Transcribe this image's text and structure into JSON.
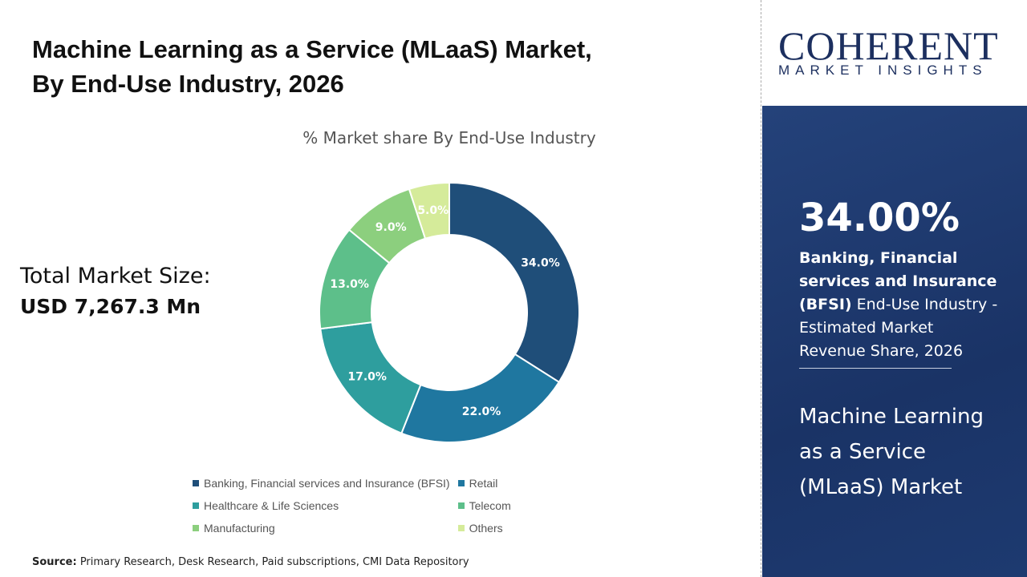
{
  "title_line1": "Machine Learning as a Service (MLaaS) Market,",
  "title_line2": "By End-Use Industry, 2026",
  "total_label": "Total Market Size:",
  "total_value": "USD 7,267.3 Mn",
  "source_label": "Source:",
  "source_text": " Primary Research, Desk Research, Paid subscriptions, CMI Data Repository",
  "logo": {
    "word": "COHERENT",
    "tagline": "MARKET INSIGHTS"
  },
  "panel": {
    "percent": "34.00%",
    "desc_bold": "Banking, Financial services and Insurance (BFSI)",
    "desc_rest": " End-Use Industry - Estimated Market Revenue Share, 2026",
    "market": "Machine Learning as a Service (MLaaS) Market"
  },
  "chart_data": {
    "type": "pie",
    "donut": true,
    "title": "% Market share By End-Use Industry",
    "categories": [
      "Banking, Financial services and Insurance (BFSI)",
      "Retail",
      "Healthcare & Life Sciences",
      "Telecom",
      "Manufacturing",
      "Others"
    ],
    "values": [
      34.0,
      22.0,
      17.0,
      13.0,
      9.0,
      5.0
    ],
    "labels": [
      "34.0%",
      "22.0%",
      "17.0%",
      "13.0%",
      "9.0%",
      "5.0%"
    ],
    "colors": [
      "#1f4e79",
      "#1f77a0",
      "#2e9e9e",
      "#5dbf8a",
      "#8ccf7e",
      "#d5eb9a"
    ],
    "legend": "bottom"
  }
}
